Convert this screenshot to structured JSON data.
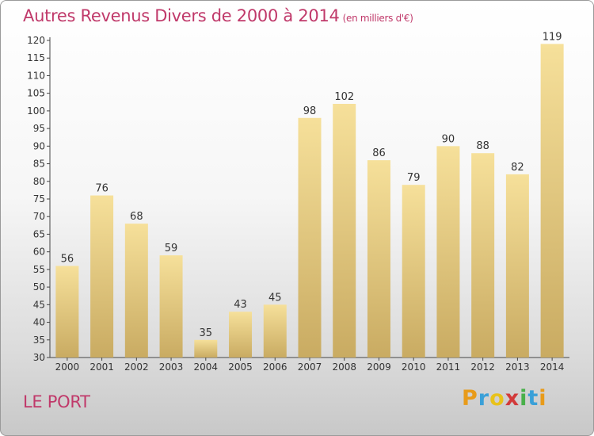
{
  "header": {
    "title": "Autres Revenus Divers de 2000 à 2014",
    "unit_note": "(en milliers d'€)"
  },
  "footer": {
    "city": "LE PORT"
  },
  "logo": {
    "letters": [
      "P",
      "r",
      "o",
      "x",
      "i",
      "t",
      "i"
    ],
    "colors": [
      "#e89b1a",
      "#3aa0d8",
      "#e8c21a",
      "#d23a3a",
      "#49b04a",
      "#3aa0d8",
      "#e89b1a"
    ]
  },
  "chart_data": {
    "type": "bar",
    "title": "Autres Revenus Divers de 2000 à 2014",
    "subtitle": "(en milliers d'€)",
    "xlabel": "",
    "ylabel": "",
    "categories": [
      "2000",
      "2001",
      "2002",
      "2003",
      "2004",
      "2005",
      "2006",
      "2007",
      "2008",
      "2009",
      "2010",
      "2011",
      "2012",
      "2013",
      "2014"
    ],
    "values": [
      56,
      76,
      68,
      59,
      35,
      43,
      45,
      98,
      102,
      86,
      79,
      90,
      88,
      82,
      119
    ],
    "ylim": [
      30,
      120
    ],
    "yticks": [
      30,
      35,
      40,
      45,
      50,
      55,
      60,
      65,
      70,
      75,
      80,
      85,
      90,
      95,
      100,
      105,
      110,
      115,
      120
    ],
    "grid": false,
    "bar_color_top": "#f6e09a",
    "bar_color_bottom": "#c9ab62"
  }
}
